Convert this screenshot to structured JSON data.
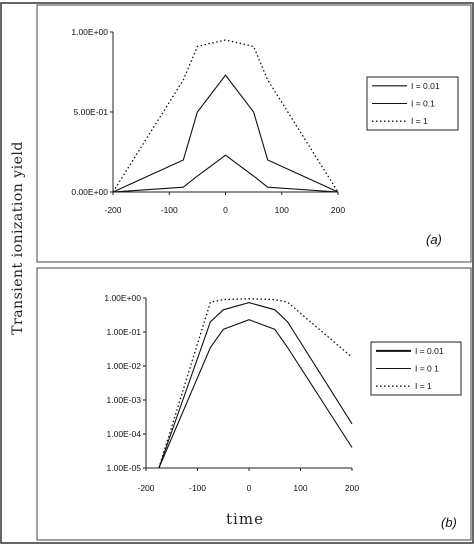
{
  "ylabel": "Transient ionization yield",
  "xlabel": "time",
  "chart_data": [
    {
      "type": "line",
      "panel_label": "(a)",
      "yscale": "linear",
      "x": [
        -200,
        -75,
        -50,
        0,
        50,
        75,
        200
      ],
      "xlim": [
        -200,
        200
      ],
      "ylim": [
        0,
        1
      ],
      "xticks": [
        -200,
        -100,
        0,
        100,
        200
      ],
      "yticks": [
        0,
        0.5,
        1
      ],
      "ytick_labels": [
        "0.00E+00",
        "5.00E-01",
        "1.00E+00"
      ],
      "legend_position": "right",
      "series": [
        {
          "name": "I = 0.01",
          "style": "solid",
          "values": [
            0,
            0.03,
            0.1,
            0.23,
            0.1,
            0.03,
            0
          ]
        },
        {
          "name": "I = 0.1",
          "style": "solid",
          "values": [
            0,
            0.2,
            0.5,
            0.73,
            0.5,
            0.2,
            0
          ]
        },
        {
          "name": "I = 1",
          "style": "dotted",
          "values": [
            0,
            0.7,
            0.91,
            0.95,
            0.91,
            0.7,
            0
          ]
        }
      ]
    },
    {
      "type": "line",
      "panel_label": "(b)",
      "yscale": "log",
      "x": [
        -175,
        -75,
        -50,
        0,
        50,
        75,
        200
      ],
      "xlim": [
        -200,
        200
      ],
      "ylim": [
        1e-05,
        1
      ],
      "xticks": [
        -200,
        -100,
        0,
        100,
        200
      ],
      "yticks": [
        1e-05,
        0.0001,
        0.001,
        0.01,
        0.1,
        1
      ],
      "ytick_labels": [
        "1.00E-05",
        "1.00E-04",
        "1.00E-03",
        "1.00E-02",
        "1.00E-01",
        "1.00E+00"
      ],
      "legend_position": "right",
      "series": [
        {
          "name": "I = 0.01",
          "style": "solid",
          "values": [
            1e-05,
            0.035,
            0.12,
            0.23,
            0.12,
            0.035,
            4e-05
          ]
        },
        {
          "name": "I = 0 1",
          "style": "solid",
          "values": [
            1e-05,
            0.2,
            0.45,
            0.73,
            0.45,
            0.2,
            0.0002
          ]
        },
        {
          "name": "I = 1",
          "style": "dotted",
          "values": [
            1e-05,
            0.75,
            0.9,
            0.95,
            0.9,
            0.75,
            0.018
          ]
        }
      ]
    }
  ]
}
